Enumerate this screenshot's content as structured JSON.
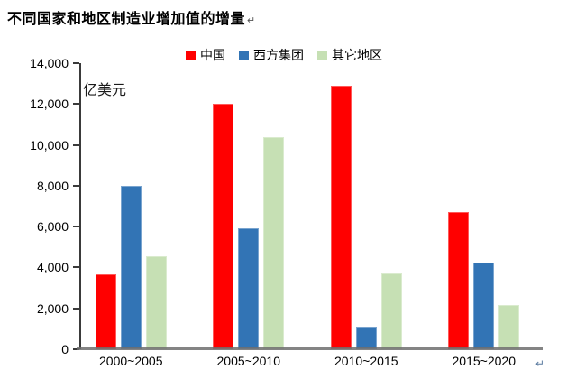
{
  "title": {
    "text": "不同国家和地区制造业增加值的增量",
    "paragraph_mark": "↵"
  },
  "end_paragraph_mark": "↵",
  "chart_data": {
    "type": "bar",
    "title": "不同国家和地区制造业增加值的增量",
    "unit_label": "亿美元",
    "categories": [
      "2000~2005",
      "2005~2010",
      "2010~2015",
      "2015~2020"
    ],
    "series": [
      {
        "name": "中国",
        "color": "#FF0000",
        "values": [
          3650,
          12000,
          12900,
          6700
        ]
      },
      {
        "name": "西方集团",
        "color": "#3274B5",
        "values": [
          8000,
          5900,
          1100,
          4250
        ]
      },
      {
        "name": "其它地区",
        "color": "#C6E0B4",
        "values": [
          4550,
          10400,
          3700,
          2150
        ]
      }
    ],
    "ylim": [
      0,
      14000
    ],
    "y_ticks": [
      0,
      2000,
      4000,
      6000,
      8000,
      10000,
      12000,
      14000
    ],
    "y_tick_labels": [
      "0",
      "2,000",
      "4,000",
      "6,000",
      "8,000",
      "10,000",
      "12,000",
      "14,000"
    ],
    "legend_position": "top",
    "grid": false
  },
  "colors": {
    "china_red": "#FF0000",
    "west_blue": "#3274B5",
    "others_green": "#C6E0B4",
    "axis_line": "#3A3A3A",
    "baseline_gray": "#6E6E6E",
    "text": "#000000"
  }
}
